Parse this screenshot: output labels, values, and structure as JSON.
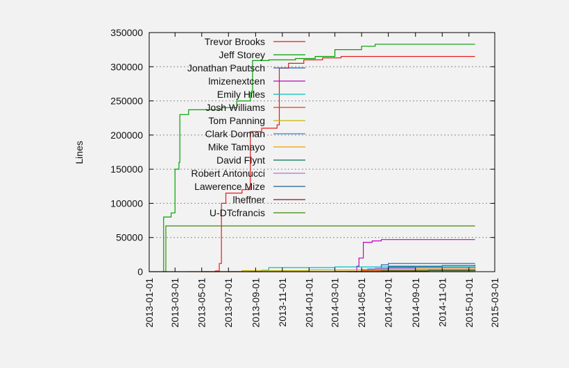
{
  "chart_data": {
    "type": "line",
    "title": "",
    "xlabel": "",
    "ylabel": "Lines",
    "ylim": [
      0,
      350000
    ],
    "xlim": [
      "2013-01-01",
      "2015-03-01"
    ],
    "grid": "horizontal-dotted",
    "legend_position": "top-left-inside",
    "y_ticks": [
      0,
      50000,
      100000,
      150000,
      200000,
      250000,
      300000,
      350000
    ],
    "y_tick_labels": [
      "0",
      "50000",
      "100000",
      "150000",
      "200000",
      "250000",
      "300000",
      "350000"
    ],
    "x_ticks": [
      "2013-01-01",
      "2013-03-01",
      "2013-05-01",
      "2013-07-01",
      "2013-09-01",
      "2013-11-01",
      "2014-01-01",
      "2014-03-01",
      "2014-05-01",
      "2014-07-01",
      "2014-09-01",
      "2014-11-01",
      "2015-01-01",
      "2015-03-01"
    ],
    "x_tick_labels": [
      "2013-01-01",
      "2013-03-01",
      "2013-05-01",
      "2013-07-01",
      "2013-09-01",
      "2013-11-01",
      "2014-01-01",
      "2014-03-01",
      "2014-05-01",
      "2014-07-01",
      "2014-09-01",
      "2014-11-01",
      "2015-01-01",
      "2015-03-01"
    ],
    "series": [
      {
        "name": "Trevor Brooks",
        "color": "#e41a1c",
        "points": [
          [
            "2013-05-01",
            0
          ],
          [
            "2013-06-01",
            1000
          ],
          [
            "2013-06-10",
            12000
          ],
          [
            "2013-06-15",
            100000
          ],
          [
            "2013-06-25",
            115000
          ],
          [
            "2013-08-01",
            120000
          ],
          [
            "2013-08-20",
            205000
          ],
          [
            "2013-09-15",
            210000
          ],
          [
            "2013-10-20",
            215000
          ],
          [
            "2013-10-25",
            298000
          ],
          [
            "2013-11-15",
            305000
          ],
          [
            "2013-12-20",
            310000
          ],
          [
            "2014-02-01",
            313000
          ],
          [
            "2014-03-15",
            315000
          ],
          [
            "2015-01-15",
            315000
          ]
        ]
      },
      {
        "name": "Jeff Storey",
        "color": "#00a000",
        "points": [
          [
            "2013-02-01",
            0
          ],
          [
            "2013-02-03",
            80000
          ],
          [
            "2013-02-20",
            86000
          ],
          [
            "2013-03-01",
            150000
          ],
          [
            "2013-03-10",
            160000
          ],
          [
            "2013-03-12",
            230000
          ],
          [
            "2013-04-01",
            237000
          ],
          [
            "2013-06-15",
            240000
          ],
          [
            "2013-07-20",
            250000
          ],
          [
            "2013-08-20",
            262000
          ],
          [
            "2013-08-25",
            309000
          ],
          [
            "2013-10-01",
            310000
          ],
          [
            "2013-12-01",
            312000
          ],
          [
            "2014-01-15",
            315000
          ],
          [
            "2014-03-01",
            325000
          ],
          [
            "2014-05-01",
            330000
          ],
          [
            "2014-06-01",
            333000
          ],
          [
            "2015-01-15",
            333000
          ]
        ]
      },
      {
        "name": "Jonathan Pautsch",
        "color": "#1a5fb4",
        "points": [
          [
            "2014-04-01",
            0
          ],
          [
            "2014-05-01",
            3000
          ],
          [
            "2014-06-15",
            10000
          ],
          [
            "2014-07-01",
            12000
          ],
          [
            "2015-01-15",
            12000
          ]
        ]
      },
      {
        "name": "lmizenextcen",
        "color": "#c000c0",
        "points": [
          [
            "2014-04-15",
            0
          ],
          [
            "2014-04-20",
            8000
          ],
          [
            "2014-04-25",
            20000
          ],
          [
            "2014-05-05",
            43000
          ],
          [
            "2014-05-25",
            45000
          ],
          [
            "2014-06-15",
            47000
          ],
          [
            "2015-01-15",
            47000
          ]
        ]
      },
      {
        "name": "Emily Hiles",
        "color": "#00c0c0",
        "points": [
          [
            "2013-08-15",
            0
          ],
          [
            "2013-09-15",
            2000
          ],
          [
            "2013-10-01",
            6000
          ],
          [
            "2014-03-01",
            7000
          ],
          [
            "2015-01-15",
            8000
          ]
        ]
      },
      {
        "name": "Josh Williams",
        "color": "#e0401a",
        "points": [
          [
            "2013-07-01",
            0
          ],
          [
            "2014-03-01",
            500
          ],
          [
            "2014-05-01",
            1500
          ],
          [
            "2015-01-15",
            2500
          ]
        ]
      },
      {
        "name": "Tom Panning",
        "color": "#c8b400",
        "points": [
          [
            "2013-04-01",
            0
          ],
          [
            "2013-08-01",
            1500
          ],
          [
            "2014-01-01",
            2500
          ],
          [
            "2015-01-15",
            3500
          ]
        ]
      },
      {
        "name": "Clark Dorman",
        "color": "#3a7fd0",
        "points": [
          [
            "2014-04-01",
            0
          ],
          [
            "2014-05-15",
            4000
          ],
          [
            "2014-07-01",
            6000
          ],
          [
            "2015-01-15",
            7000
          ]
        ]
      },
      {
        "name": "Mike Tamayo",
        "color": "#e8a000",
        "points": [
          [
            "2014-05-01",
            0
          ],
          [
            "2014-06-01",
            3000
          ],
          [
            "2014-09-01",
            4000
          ],
          [
            "2015-01-15",
            5000
          ]
        ]
      },
      {
        "name": "David Flynt",
        "color": "#007050",
        "points": [
          [
            "2014-05-01",
            0
          ],
          [
            "2014-06-15",
            1000
          ],
          [
            "2014-10-01",
            2000
          ],
          [
            "2015-01-15",
            3000
          ]
        ]
      },
      {
        "name": "Robert Antonucci",
        "color": "#b070e0",
        "points": [
          [
            "2014-05-01",
            0
          ],
          [
            "2014-06-01",
            5000
          ],
          [
            "2014-09-01",
            6000
          ],
          [
            "2015-01-15",
            6500
          ]
        ]
      },
      {
        "name": "Lawerence Mize",
        "color": "#206090",
        "points": [
          [
            "2014-06-01",
            0
          ],
          [
            "2014-07-01",
            8000
          ],
          [
            "2014-11-01",
            9000
          ],
          [
            "2015-01-15",
            10000
          ]
        ]
      },
      {
        "name": "lheffner",
        "color": "#901020",
        "points": [
          [
            "2013-01-01",
            0
          ],
          [
            "2015-01-15",
            0
          ]
        ]
      },
      {
        "name": "U-DTcfrancis",
        "color": "#3a8a00",
        "points": [
          [
            "2013-02-05",
            0
          ],
          [
            "2013-02-08",
            67000
          ],
          [
            "2015-01-15",
            67000
          ]
        ]
      }
    ]
  }
}
